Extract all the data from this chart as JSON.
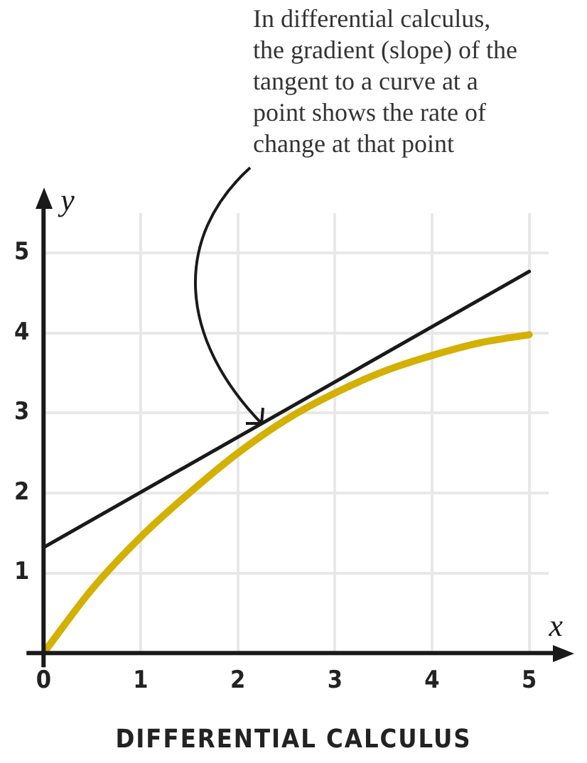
{
  "chart_data": {
    "type": "line",
    "title": "DIFFERENTIAL CALCULUS",
    "xlabel": "x",
    "ylabel": "y",
    "x": [
      0,
      0.5,
      1,
      1.5,
      2,
      2.5,
      3,
      3.5,
      4,
      4.5,
      5
    ],
    "series": [
      {
        "color": "#d4b000",
        "values": [
          0,
          0.8,
          1.45,
          2.0,
          2.5,
          2.92,
          3.25,
          3.52,
          3.72,
          3.88,
          3.98
        ]
      },
      {
        "color": "#1a1a1a",
        "x": [
          0,
          5
        ],
        "values": [
          1.32,
          4.77
        ]
      }
    ],
    "xlim": [
      0,
      5.2
    ],
    "ylim": [
      0,
      5.5
    ],
    "xticks": [
      0,
      1,
      2,
      3,
      4,
      5
    ],
    "yticks": [
      1,
      2,
      3,
      4,
      5
    ],
    "grid": true,
    "annotations": [
      "In differential calculus, the gradient (slope) of the tangent to a curve at a point shows the rate of change at that point"
    ]
  }
}
